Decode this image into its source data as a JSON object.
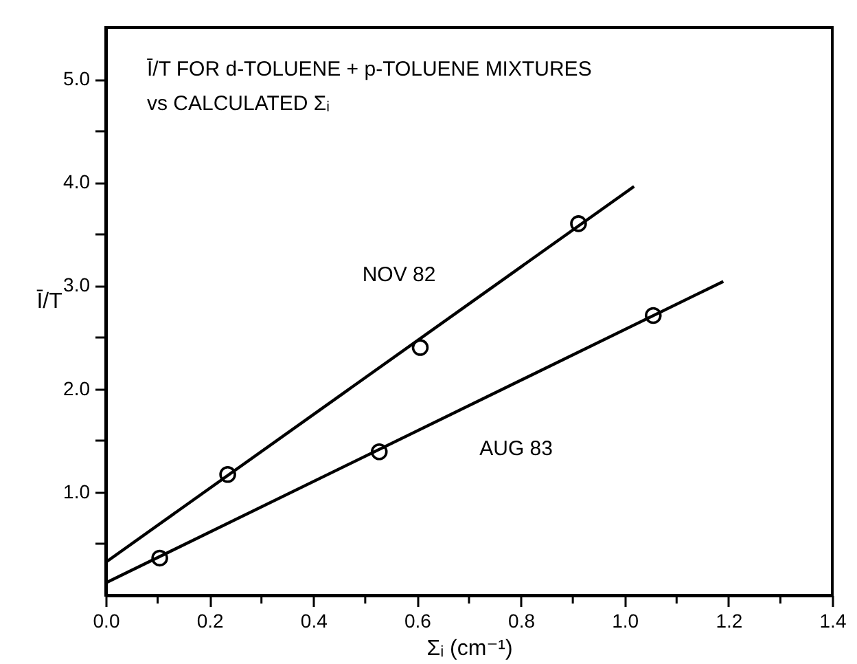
{
  "chart_data": {
    "type": "scatter",
    "title": "Ī/T FOR d-TOLUENE + p-TOLUENE MIXTURES",
    "subtitle": "vs CALCULATED Σᵢ",
    "xlabel": "Σᵢ (cm⁻¹)",
    "ylabel": "Ī/T",
    "xlim": [
      0,
      1.4
    ],
    "ylim": [
      0,
      5.5
    ],
    "xticks": [
      {
        "value": 0,
        "label": "0.0"
      },
      {
        "value": 0.1,
        "label": null
      },
      {
        "value": 0.2,
        "label": "0.2"
      },
      {
        "value": 0.3,
        "label": null
      },
      {
        "value": 0.4,
        "label": "0.4"
      },
      {
        "value": 0.5,
        "label": null
      },
      {
        "value": 0.6,
        "label": "0.6"
      },
      {
        "value": 0.7,
        "label": null
      },
      {
        "value": 0.8,
        "label": "0.8"
      },
      {
        "value": 0.9,
        "label": null
      },
      {
        "value": 1,
        "label": "1.0"
      },
      {
        "value": 1.1,
        "label": null
      },
      {
        "value": 1.2,
        "label": "1.2"
      },
      {
        "value": 1.3,
        "label": null
      },
      {
        "value": 1.4,
        "label": "1.4"
      }
    ],
    "yticks": [
      {
        "value": 0.5,
        "label": null
      },
      {
        "value": 1,
        "label": "1.0"
      },
      {
        "value": 1.5,
        "label": null
      },
      {
        "value": 2,
        "label": "2.0"
      },
      {
        "value": 2.5,
        "label": null
      },
      {
        "value": 3,
        "label": "3.0"
      },
      {
        "value": 3.5,
        "label": null
      },
      {
        "value": 4,
        "label": "4.0"
      },
      {
        "value": 4.5,
        "label": null
      },
      {
        "value": 5,
        "label": "5.0"
      }
    ],
    "grid": false,
    "marker": "circle",
    "line_style": "solid",
    "series": [
      {
        "type": "scatter",
        "color": "#000000",
        "x": [
          0.235,
          0.606,
          0.911
        ],
        "values": [
          1.17,
          2.4,
          3.6
        ]
      },
      {
        "type": "scatter",
        "color": "#000000",
        "x": [
          0.104,
          0.527,
          1.055
        ],
        "values": [
          0.36,
          1.39,
          2.71
        ]
      },
      {
        "type": "line",
        "name": "NOV 82",
        "marker": "none",
        "color": "#000000",
        "x": [
          0,
          1.018
        ],
        "values": [
          0.32,
          3.96
        ]
      },
      {
        "type": "line",
        "name": "AUG 83",
        "marker": "none",
        "color": "#000000",
        "x": [
          0,
          1.19
        ],
        "values": [
          0.12,
          3.04
        ]
      }
    ]
  }
}
